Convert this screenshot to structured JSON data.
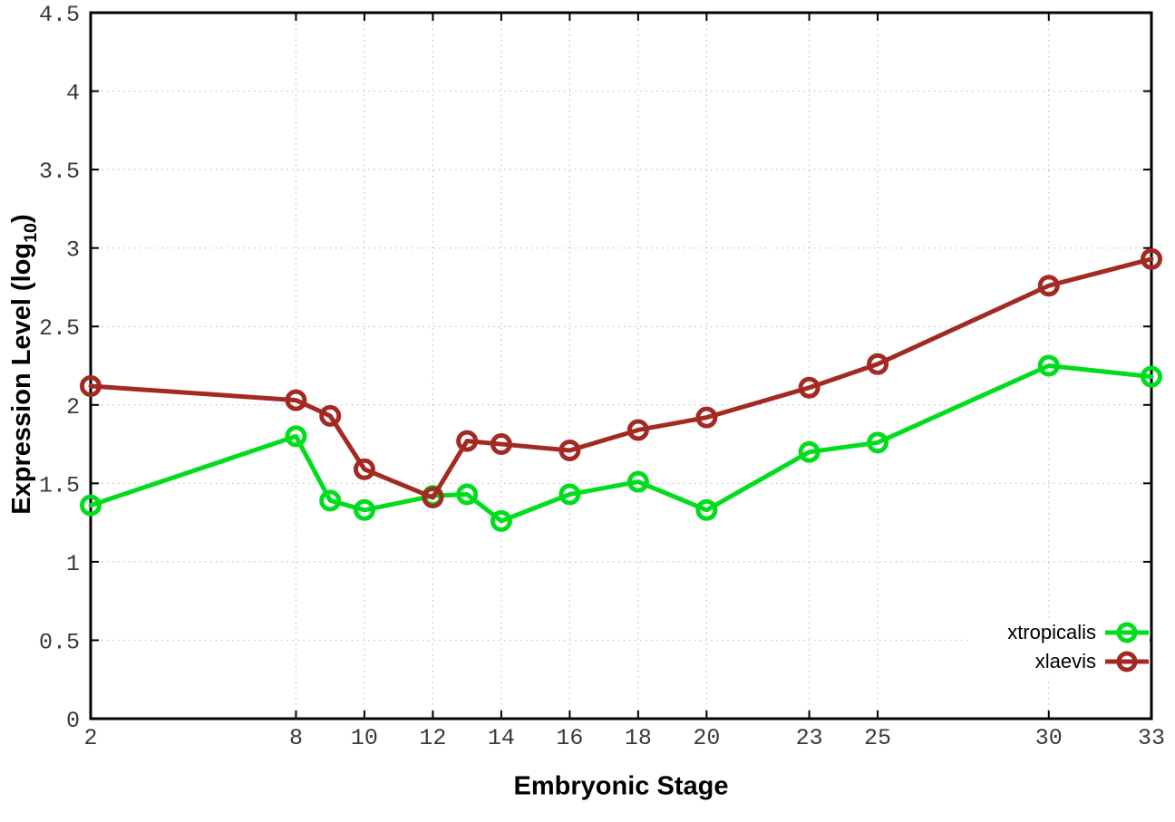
{
  "chart_data": {
    "type": "line",
    "xlabel": "Embryonic Stage",
    "ylabel": "Expression Level (log10)",
    "ylabel_parts": {
      "prefix": "Expression Level (log",
      "sub": "10",
      "suffix": ")"
    },
    "x": [
      2,
      8,
      9,
      10,
      12,
      13,
      14,
      16,
      18,
      20,
      23,
      25,
      30,
      33
    ],
    "xticks": [
      2,
      8,
      10,
      12,
      14,
      16,
      18,
      20,
      23,
      25,
      30,
      33
    ],
    "yticks": [
      0,
      0.5,
      1,
      1.5,
      2,
      2.5,
      3,
      3.5,
      4,
      4.5
    ],
    "xlim": [
      2,
      33
    ],
    "ylim": [
      0,
      4.5
    ],
    "grid": true,
    "legend_position": "inside bottom-right",
    "series": [
      {
        "name": "xtropicalis",
        "color": "#00dd1c",
        "values": [
          1.36,
          1.8,
          1.39,
          1.33,
          1.42,
          1.43,
          1.26,
          1.43,
          1.51,
          1.33,
          1.7,
          1.76,
          2.25,
          2.18
        ]
      },
      {
        "name": "xlaevis",
        "color": "#a32a23",
        "values": [
          2.12,
          2.03,
          1.93,
          1.59,
          1.41,
          1.77,
          1.75,
          1.71,
          1.84,
          1.92,
          2.11,
          2.26,
          2.76,
          2.93
        ]
      }
    ]
  },
  "colors": {
    "background": "#ffffff",
    "axis": "#000000",
    "grid": "#c2c2c2",
    "tick_label": "#3a3a3a"
  }
}
